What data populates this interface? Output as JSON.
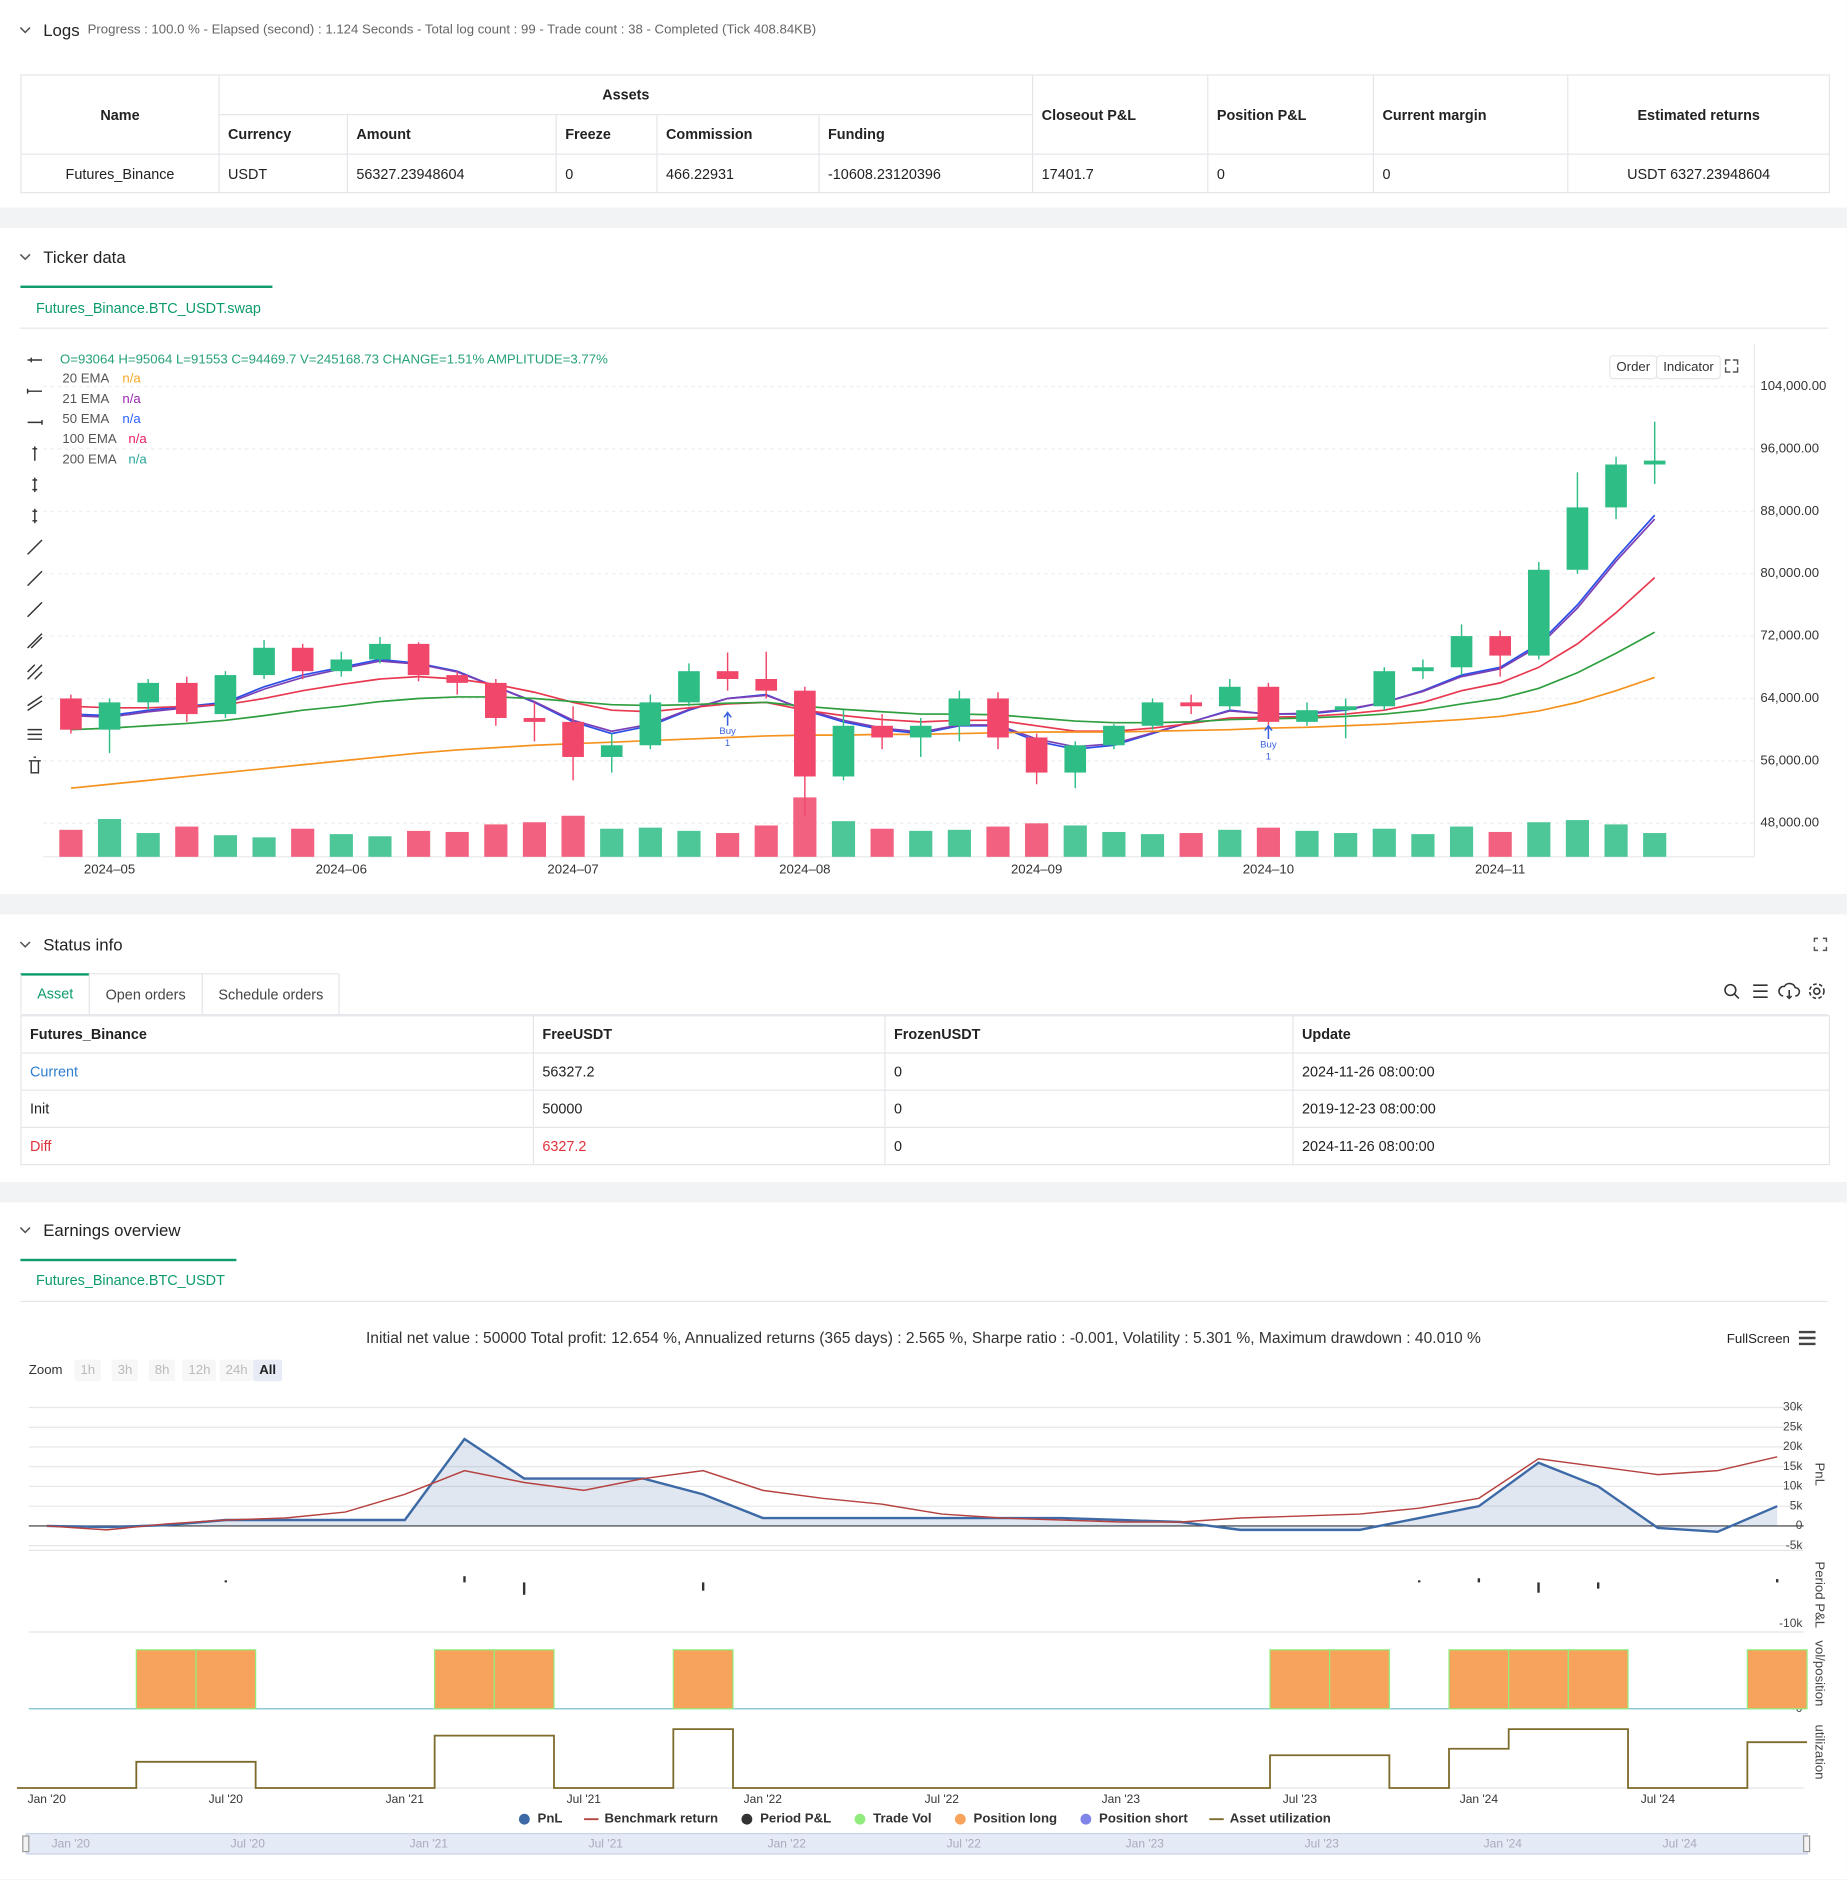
{
  "logs": {
    "title": "Logs",
    "progress": "Progress : 100.0 % - Elapsed (second) : 1.124  Seconds - Total log count : 99 - Trade count : 38 - Completed (Tick 408.84KB)"
  },
  "assets_table": {
    "name": "Name",
    "assets": "Assets",
    "closeout": "Closeout P&L",
    "position": "Position P&L",
    "margin": "Current margin",
    "returns": "Estimated returns",
    "sub": [
      "Currency",
      "Amount",
      "Freeze",
      "Commission",
      "Funding"
    ],
    "row": [
      "Futures_Binance",
      "USDT",
      "56327.23948604",
      "0",
      "466.22931",
      "-10608.23120396",
      "17401.7",
      "0",
      "0",
      "USDT 6327.23948604"
    ]
  },
  "ticker": {
    "title": "Ticker data",
    "tab": "Futures_Binance.BTC_USDT.swap",
    "ohlc": "O=93064 H=95064 L=91553 C=94469.7 V=245168.73 CHANGE=1.51% AMPLITUDE=3.77%",
    "buttons": [
      "Order",
      "Indicator"
    ],
    "chart_data": {
      "type": "candlestick",
      "grid": true,
      "up_color": "#2ebd85",
      "down_color": "#f0476a",
      "categories": [
        null,
        "2024–05",
        null,
        null,
        null,
        null,
        null,
        "2024–06",
        null,
        null,
        null,
        null,
        null,
        "2024–07",
        null,
        null,
        null,
        null,
        null,
        "2024–08",
        null,
        null,
        null,
        null,
        null,
        "2024–09",
        null,
        null,
        null,
        null,
        null,
        "2024–10",
        null,
        null,
        null,
        null,
        null,
        "2024–11",
        null,
        null,
        null,
        null
      ],
      "ohlc": [
        [
          64000,
          64500,
          59500,
          60000
        ],
        [
          60000,
          64000,
          57000,
          63500
        ],
        [
          63500,
          66500,
          62500,
          66000
        ],
        [
          66000,
          66800,
          61000,
          62000
        ],
        [
          62000,
          67500,
          61500,
          67000
        ],
        [
          67000,
          71500,
          66500,
          70500
        ],
        [
          70500,
          71000,
          66500,
          67500
        ],
        [
          67500,
          70000,
          66800,
          69000
        ],
        [
          69000,
          71900,
          68500,
          71000
        ],
        [
          71000,
          71200,
          66200,
          67000
        ],
        [
          67000,
          67500,
          64500,
          66000
        ],
        [
          66000,
          66500,
          60500,
          61500
        ],
        [
          61500,
          63500,
          58500,
          61000
        ],
        [
          61000,
          63000,
          53500,
          56500
        ],
        [
          56500,
          59500,
          54500,
          58000
        ],
        [
          58000,
          64500,
          57500,
          63500
        ],
        [
          63500,
          68500,
          63000,
          67500
        ],
        [
          67500,
          69900,
          65000,
          66500
        ],
        [
          66500,
          70000,
          64000,
          65000
        ],
        [
          65000,
          65500,
          49000,
          54000
        ],
        [
          54000,
          62500,
          53500,
          60500
        ],
        [
          60500,
          62000,
          57500,
          59000
        ],
        [
          59000,
          61500,
          56500,
          60500
        ],
        [
          60500,
          65000,
          58500,
          64000
        ],
        [
          64000,
          64800,
          57500,
          59000
        ],
        [
          59000,
          59500,
          53000,
          54500
        ],
        [
          54500,
          58500,
          52500,
          58000
        ],
        [
          58000,
          60700,
          57500,
          60500
        ],
        [
          60500,
          64000,
          60000,
          63500
        ],
        [
          63500,
          64500,
          62000,
          63000
        ],
        [
          63000,
          66500,
          62500,
          65500
        ],
        [
          65500,
          66000,
          60000,
          61000
        ],
        [
          61000,
          63500,
          60500,
          62500
        ],
        [
          62500,
          64000,
          58900,
          63000
        ],
        [
          63000,
          68000,
          62500,
          67500
        ],
        [
          67500,
          69000,
          66500,
          68000
        ],
        [
          68000,
          73500,
          67000,
          72000
        ],
        [
          72000,
          72700,
          66800,
          69500
        ],
        [
          69500,
          81500,
          69000,
          80500
        ],
        [
          80500,
          93000,
          80000,
          88500
        ],
        [
          88500,
          95000,
          87000,
          94000
        ],
        [
          94000,
          99500,
          91500,
          94500
        ]
      ],
      "volume": [
        2500,
        3500,
        2200,
        2800,
        2000,
        1800,
        2600,
        2100,
        1900,
        2400,
        2300,
        3000,
        3200,
        3800,
        2600,
        2700,
        2400,
        2200,
        2900,
        5500,
        3300,
        2600,
        2400,
        2500,
        2800,
        3100,
        2900,
        2300,
        2100,
        2200,
        2500,
        2700,
        2400,
        2200,
        2600,
        2100,
        2800,
        2300,
        3200,
        3400,
        3000,
        2200
      ],
      "vlim": [
        0,
        10000
      ],
      "ylim": [
        43700,
        109400
      ],
      "yticks": [
        {
          "value": 48000,
          "label": "48,000.00"
        },
        {
          "value": 56000,
          "label": "56,000.00"
        },
        {
          "value": 64000,
          "label": "64,000.00"
        },
        {
          "value": 72000,
          "label": "72,000.00"
        },
        {
          "value": 80000,
          "label": "80,000.00"
        },
        {
          "value": 88000,
          "label": "88,000.00"
        },
        {
          "value": 96000,
          "label": "96,000.00"
        },
        {
          "value": 104000,
          "label": "104,000.00"
        }
      ],
      "series": [
        {
          "name": "20 EMA",
          "legend_value": "n/a",
          "color": "#2b4ee6",
          "label_color": "#f5a623",
          "values": [
            62000,
            61800,
            62500,
            63000,
            63500,
            65500,
            67000,
            68000,
            69000,
            68500,
            67500,
            65500,
            63500,
            61000,
            59500,
            60500,
            62500,
            64000,
            64500,
            62500,
            61000,
            60000,
            59500,
            60500,
            60500,
            58500,
            57500,
            58000,
            59500,
            61000,
            62500,
            62000,
            62000,
            62500,
            63500,
            65000,
            67000,
            68000,
            71000,
            76000,
            82000,
            87500
          ]
        },
        {
          "name": "21 EMA",
          "legend_value": "n/a",
          "color": "#7b3fb5",
          "label_color": "#9c27b0",
          "values": [
            61800,
            61600,
            62300,
            62800,
            63300,
            65200,
            66700,
            67800,
            68800,
            68400,
            67400,
            65500,
            63600,
            61200,
            59800,
            60700,
            62600,
            64000,
            64400,
            62600,
            61200,
            60200,
            59700,
            60600,
            60600,
            58800,
            57800,
            58200,
            59600,
            61000,
            62400,
            62000,
            62100,
            62600,
            63500,
            64900,
            66800,
            67800,
            70700,
            75600,
            81600,
            87000
          ]
        },
        {
          "name": "50 EMA",
          "legend_value": "n/a",
          "color": "#e8384f",
          "label_color": "#2962ff",
          "values": [
            63000,
            62800,
            62800,
            63000,
            63200,
            64000,
            65000,
            65800,
            66500,
            66800,
            66500,
            65800,
            64800,
            63500,
            62500,
            62300,
            62800,
            63300,
            63500,
            62500,
            61800,
            61300,
            61000,
            61200,
            61200,
            60500,
            59800,
            59800,
            60200,
            60800,
            61500,
            61600,
            61700,
            62000,
            62500,
            63500,
            65000,
            66000,
            68000,
            71000,
            75000,
            79500
          ]
        },
        {
          "name": "100 EMA",
          "legend_value": "n/a",
          "color": "#2e9e3e",
          "label_color": "#e91e63",
          "values": [
            60000,
            60200,
            60500,
            60800,
            61200,
            61800,
            62500,
            63000,
            63600,
            64000,
            64200,
            64200,
            64000,
            63600,
            63200,
            63100,
            63200,
            63400,
            63500,
            63000,
            62600,
            62300,
            62000,
            62000,
            61900,
            61500,
            61100,
            60900,
            60900,
            61000,
            61300,
            61400,
            61500,
            61700,
            62000,
            62500,
            63300,
            64000,
            65300,
            67300,
            69800,
            72500
          ]
        },
        {
          "name": "200 EMA",
          "legend_value": "n/a",
          "color": "#f5921e",
          "label_color": "#26a69a",
          "values": [
            52500,
            53000,
            53500,
            54000,
            54500,
            55000,
            55500,
            56000,
            56500,
            57000,
            57400,
            57700,
            58000,
            58200,
            58400,
            58600,
            58800,
            59000,
            59200,
            59300,
            59300,
            59400,
            59400,
            59500,
            59600,
            59700,
            59700,
            59700,
            59800,
            59900,
            60000,
            60200,
            60300,
            60500,
            60700,
            61000,
            61300,
            61700,
            62400,
            63500,
            65000,
            66700
          ]
        }
      ],
      "annotations": [
        {
          "text": "Buy",
          "qty": "1",
          "at": 17,
          "price": 62200
        },
        {
          "text": "Buy",
          "qty": "1",
          "at": 31,
          "price": 60500
        }
      ]
    }
  },
  "status": {
    "title": "Status info",
    "tabs": [
      "Asset",
      "Open orders",
      "Schedule orders"
    ],
    "headers": [
      "Futures_Binance",
      "FreeUSDT",
      "FrozenUSDT",
      "Update"
    ],
    "rows": [
      [
        "Current",
        "56327.2",
        "0",
        "2024-11-26 08:00:00"
      ],
      [
        "Init",
        "50000",
        "0",
        "2019-12-23 08:00:00"
      ],
      [
        "Diff",
        "6327.2",
        "0",
        "2024-11-26 08:00:00"
      ]
    ]
  },
  "earnings": {
    "title": "Earnings overview",
    "tab": "Futures_Binance.BTC_USDT",
    "summary": "Initial net value : 50000 Total profit: 12.654 %, Annualized returns (365 days) : 2.565 %, Sharpe ratio : -0.001, Volatility : 5.301 %, Maximum drawdown : 40.010 %",
    "fullscreen": "FullScreen",
    "zoom_label": "Zoom",
    "zoom_buttons": [
      "1h",
      "3h",
      "8h",
      "12h",
      "24h",
      "All"
    ],
    "chart_data": [
      {
        "type": "line",
        "y_label": "PnL",
        "grid": true,
        "ylim": [
          -6200,
          32400
        ],
        "yticks": [
          {
            "value": -5000,
            "label": "-5k"
          },
          0,
          {
            "value": 5000,
            "label": "5k"
          },
          {
            "value": 10000,
            "label": "10k"
          },
          {
            "value": 15000,
            "label": "15k"
          },
          {
            "value": 20000,
            "label": "20k"
          },
          {
            "value": 25000,
            "label": "25k"
          },
          {
            "value": 30000,
            "label": "30k"
          }
        ],
        "series": [
          {
            "name": "PnL",
            "color": "#3d6aa6",
            "marker": "circle",
            "area": true,
            "values": [
              0,
              -300,
              200,
              1500,
              1500,
              1500,
              1500,
              22000,
              12000,
              12000,
              12000,
              8000,
              2000,
              2000,
              2000,
              2000,
              2000,
              2000,
              1500,
              1000,
              -1000,
              -1000,
              -1000,
              2000,
              5000,
              16000,
              10000,
              -500,
              -1500,
              5000
            ]
          },
          {
            "name": "Benchmark return",
            "color": "#b5423f",
            "marker": "line",
            "values": [
              0,
              -1000,
              500,
              1500,
              2000,
              3500,
              8000,
              14000,
              11000,
              9000,
              12000,
              14000,
              9000,
              7000,
              5500,
              3000,
              2000,
              1500,
              1000,
              1000,
              2000,
              2500,
              3000,
              4500,
              7000,
              17000,
              15000,
              13000,
              14000,
              17500
            ]
          }
        ]
      },
      {
        "type": "bar",
        "y_label": "Period P&L",
        "ylim": [
          -12000,
          6000
        ],
        "yticks": [
          {
            "value": -10000,
            "label": "-10k"
          }
        ],
        "series": [
          {
            "name": "Period P&L",
            "color": "#333333",
            "marker": "circle",
            "values": [
              0,
              0,
              0,
              500,
              0,
              0,
              0,
              1500,
              -3000,
              0,
              0,
              -2000,
              0,
              0,
              0,
              0,
              0,
              0,
              0,
              0,
              0,
              0,
              0,
              500,
              1000,
              -2500,
              -1500,
              0,
              0,
              800
            ]
          }
        ]
      },
      {
        "type": "column",
        "y_label": "vol/position",
        "ylim": [
          0,
          1.2
        ],
        "yticks": [
          0
        ],
        "series": [
          {
            "name": "Trade Vol",
            "color": "#90ed7d",
            "marker": "circle",
            "values": [
              0,
              0,
              0,
              0,
              0,
              0,
              0,
              0,
              0,
              0,
              0,
              0,
              0,
              0,
              0,
              0,
              0,
              0,
              0,
              0,
              0,
              0,
              0,
              0,
              0,
              0,
              0,
              0,
              0,
              0
            ]
          },
          {
            "name": "Position long",
            "color": "#f7a35c",
            "marker": "circle",
            "values": [
              0,
              0,
              1,
              1,
              0,
              0,
              0,
              1,
              1,
              0,
              0,
              1,
              0,
              0,
              0,
              0,
              0,
              0,
              0,
              0,
              0,
              1,
              1,
              0,
              1,
              1,
              1,
              0,
              0,
              1
            ]
          },
          {
            "name": "Position short",
            "color": "#8085e9",
            "marker": "circle",
            "values": [
              0,
              0,
              0,
              0,
              0,
              0,
              0,
              0,
              0,
              0,
              0,
              0,
              0,
              0,
              0,
              0,
              0,
              0,
              0,
              0,
              0,
              0,
              0,
              0,
              0,
              0,
              0,
              0,
              0,
              0
            ]
          }
        ]
      },
      {
        "type": "step",
        "y_label": "utilization",
        "ylim": [
          0,
          1.1
        ],
        "categories": [
          "Jan '20",
          null,
          null,
          "Jul '20",
          null,
          null,
          "Jan '21",
          null,
          null,
          "Jul '21",
          null,
          null,
          "Jan '22",
          null,
          null,
          "Jul '22",
          null,
          null,
          "Jan '23",
          null,
          null,
          "Jul '23",
          null,
          null,
          "Jan '24",
          null,
          null,
          "Jul '24",
          null,
          null
        ],
        "series": [
          {
            "name": "Asset utilization",
            "color": "#7d6b2b",
            "marker": "line",
            "values": [
              0,
              0,
              0.4,
              0.4,
              0,
              0,
              0,
              0.8,
              0.8,
              0,
              0,
              0.9,
              0,
              0,
              0,
              0,
              0,
              0,
              0,
              0,
              0,
              0.5,
              0.5,
              0,
              0.6,
              0.9,
              0.9,
              0,
              0,
              0.7
            ]
          }
        ]
      }
    ]
  }
}
